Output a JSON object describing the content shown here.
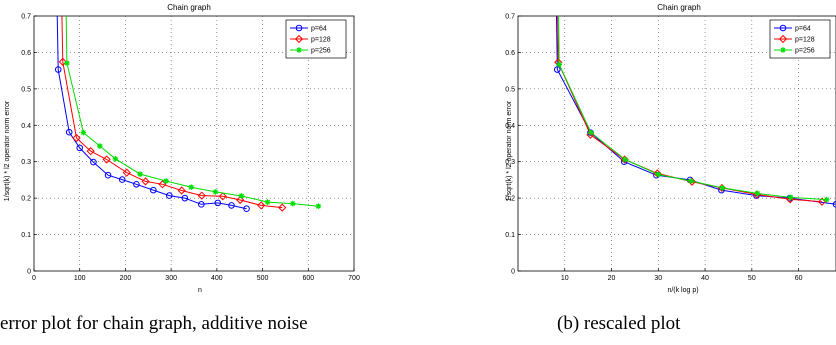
{
  "chart_data": [
    {
      "type": "line",
      "title": "Chain graph",
      "xlabel": "n",
      "ylabel": "1/sqrt(k) * l2 operator norm error",
      "xlim": [
        0,
        700
      ],
      "ylim": [
        0,
        0.7
      ],
      "xticks": [
        "0",
        "100",
        "200",
        "300",
        "400",
        "500",
        "600",
        "700"
      ],
      "yticks": [
        "0",
        "0.1",
        "0.2",
        "0.3",
        "0.4",
        "0.5",
        "0.6",
        "0.7"
      ],
      "grid": true,
      "legend": "top-right",
      "series": [
        {
          "name": "p=64",
          "color": "#0000ff",
          "marker": "circle",
          "x": [
            48,
            53,
            77,
            100,
            130,
            162,
            193,
            224,
            261,
            296,
            330,
            366,
            402,
            432,
            465
          ],
          "y": [
            0.9,
            0.553,
            0.381,
            0.338,
            0.299,
            0.263,
            0.251,
            0.238,
            0.222,
            0.207,
            0.2,
            0.183,
            0.187,
            0.18,
            0.171
          ]
        },
        {
          "name": "p=128",
          "color": "#ff0000",
          "marker": "diamond",
          "x": [
            58,
            63,
            93,
            124,
            159,
            203,
            244,
            281,
            323,
            367,
            413,
            451,
            497,
            543
          ],
          "y": [
            0.9,
            0.574,
            0.365,
            0.329,
            0.306,
            0.27,
            0.246,
            0.238,
            0.221,
            0.207,
            0.205,
            0.195,
            0.18,
            0.174
          ]
        },
        {
          "name": "p=256",
          "color": "#00dd00",
          "marker": "star",
          "x": [
            68,
            72,
            108,
            144,
            178,
            232,
            289,
            344,
            397,
            454,
            511,
            566,
            622
          ],
          "y": [
            0.9,
            0.571,
            0.38,
            0.343,
            0.308,
            0.266,
            0.247,
            0.23,
            0.217,
            0.206,
            0.189,
            0.185,
            0.178
          ]
        }
      ]
    },
    {
      "type": "line",
      "title": "Chain graph",
      "xlabel": "n/(k log p)",
      "ylabel": "1/sqrt(k) * l2 operator norm error",
      "xlim": [
        0,
        68
      ],
      "ylim": [
        0,
        0.7
      ],
      "xticks": [
        "10",
        "20",
        "30",
        "40",
        "50",
        "60"
      ],
      "yticks": [
        "0",
        "0.1",
        "0.2",
        "0.3",
        "0.4",
        "0.5",
        "0.6",
        "0.7"
      ],
      "grid": true,
      "legend": "top-right",
      "series": [
        {
          "name": "p=64",
          "color": "#0000ff",
          "marker": "circle",
          "x": [
            8,
            8.4,
            15.5,
            22.7,
            29.6,
            36.8,
            43.5,
            51,
            58.1,
            68
          ],
          "y": [
            0.9,
            0.553,
            0.38,
            0.3,
            0.263,
            0.25,
            0.222,
            0.207,
            0.2,
            0.183
          ]
        },
        {
          "name": "p=128",
          "color": "#ff0000",
          "marker": "diamond",
          "x": [
            8.3,
            8.6,
            15.5,
            22.8,
            29.8,
            37.2,
            43.6,
            51.1,
            58.2,
            65
          ],
          "y": [
            0.9,
            0.573,
            0.374,
            0.306,
            0.268,
            0.245,
            0.228,
            0.21,
            0.197,
            0.19
          ]
        },
        {
          "name": "p=256",
          "color": "#00dd00",
          "marker": "star",
          "x": [
            8.5,
            8.8,
            15.6,
            22.9,
            30,
            37,
            43.7,
            51.2,
            58.3,
            66
          ],
          "y": [
            0.9,
            0.567,
            0.38,
            0.306,
            0.265,
            0.247,
            0.228,
            0.213,
            0.202,
            0.196
          ]
        }
      ]
    }
  ],
  "captions": {
    "a": "error plot for chain graph, additive noise",
    "b": "(b) rescaled plot"
  }
}
